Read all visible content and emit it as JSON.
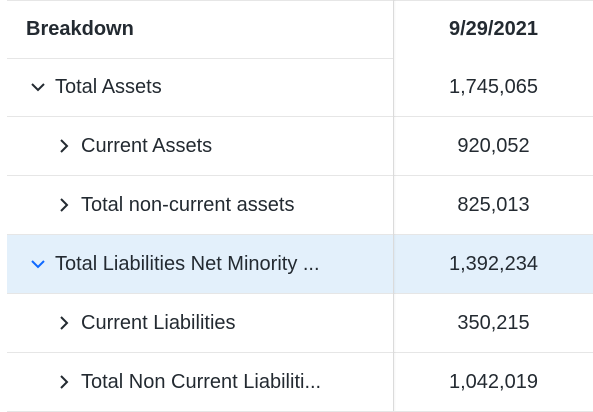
{
  "header": {
    "label": "Breakdown",
    "date": "9/29/2021"
  },
  "rows": [
    {
      "label": "Total Assets",
      "value": "1,745,065",
      "expanded": true,
      "level": 0
    },
    {
      "label": "Current Assets",
      "value": "920,052",
      "expanded": false,
      "level": 1
    },
    {
      "label": "Total non-current assets",
      "value": "825,013",
      "expanded": false,
      "level": 1
    },
    {
      "label": "Total Liabilities Net Minority ...",
      "value": "1,392,234",
      "expanded": true,
      "level": 0,
      "highlighted": true
    },
    {
      "label": "Current Liabilities",
      "value": "350,215",
      "expanded": false,
      "level": 1
    },
    {
      "label": "Total Non Current Liabiliti...",
      "value": "1,042,019",
      "expanded": false,
      "level": 1
    }
  ],
  "colors": {
    "text": "#232a31",
    "chevron": "#232a31",
    "chevron_active": "#0f69ff",
    "highlight": "#e3f0fb",
    "border": "#e6e6e6"
  }
}
